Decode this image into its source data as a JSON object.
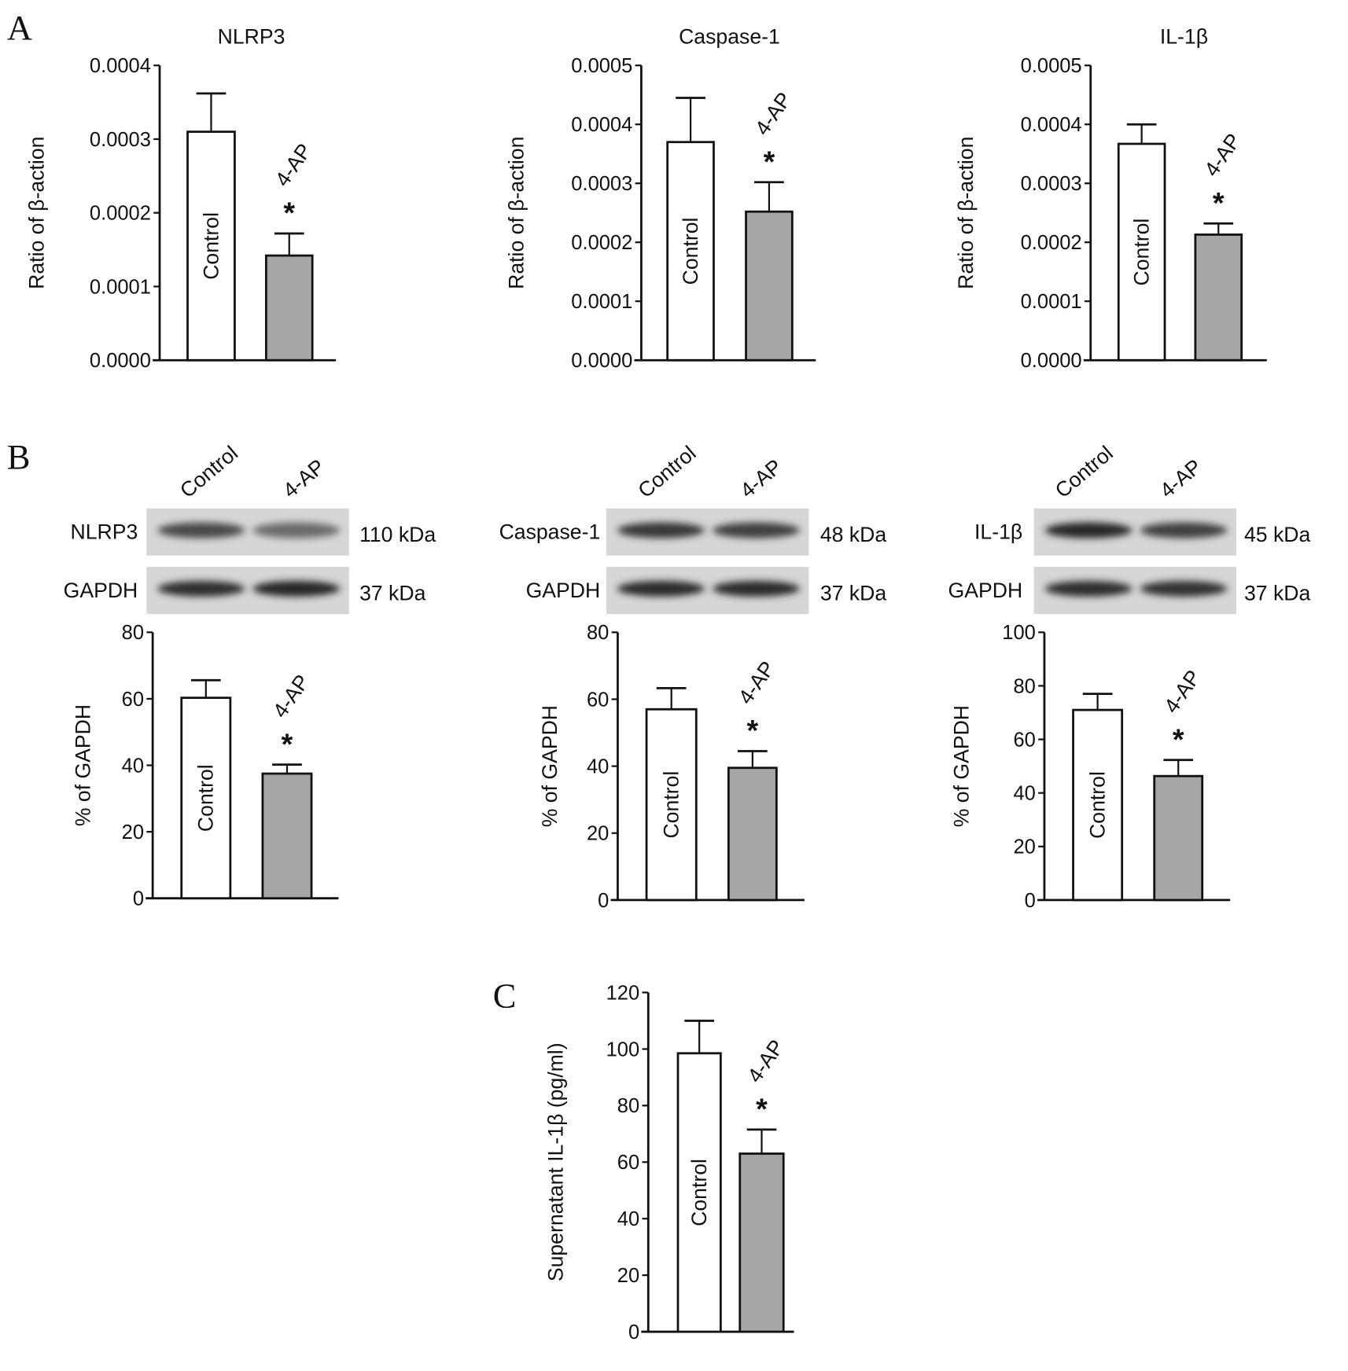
{
  "panels": {
    "A": "A",
    "B": "B",
    "C": "C"
  },
  "blots": [
    {
      "protein": "NLRP3",
      "protein_kda": "110 kDa",
      "loading": "GAPDH",
      "loading_kda": "37 kDa",
      "lanes": [
        "Control",
        "4-AP"
      ],
      "band_intensity": [
        0.75,
        0.55
      ],
      "loading_intensity": [
        0.9,
        0.95
      ]
    },
    {
      "protein": "Caspase-1",
      "protein_kda": "48 kDa",
      "loading": "GAPDH",
      "loading_kda": "37 kDa",
      "lanes": [
        "Control",
        "4-AP"
      ],
      "band_intensity": [
        0.85,
        0.8
      ],
      "loading_intensity": [
        0.92,
        0.92
      ]
    },
    {
      "protein": "IL-1β",
      "protein_kda": "45 kDa",
      "loading": "GAPDH",
      "loading_kda": "37 kDa",
      "lanes": [
        "Control",
        "4-AP"
      ],
      "band_intensity": [
        0.95,
        0.8
      ],
      "loading_intensity": [
        0.9,
        0.88
      ]
    }
  ],
  "chart_data": [
    {
      "type": "bar",
      "panel": "A",
      "title": "NLRP3",
      "ylabel": "Ratio of β-action",
      "ylim": [
        0,
        0.0004
      ],
      "ticks": [
        "0.0000",
        "0.0001",
        "0.0002",
        "0.0003",
        "0.0004"
      ],
      "tick_values": [
        0,
        0.0001,
        0.0002,
        0.0003,
        0.0004
      ],
      "categories": [
        "Control",
        "4-AP"
      ],
      "values": [
        0.00031,
        0.000142
      ],
      "errors": [
        5.2e-05,
        3e-05
      ],
      "significance": [
        "",
        "*"
      ]
    },
    {
      "type": "bar",
      "panel": "A",
      "title": "Caspase-1",
      "ylabel": "Ratio of β-action",
      "ylim": [
        0,
        0.0005
      ],
      "ticks": [
        "0.0000",
        "0.0001",
        "0.0002",
        "0.0003",
        "0.0004",
        "0.0005"
      ],
      "tick_values": [
        0,
        0.0001,
        0.0002,
        0.0003,
        0.0004,
        0.0005
      ],
      "categories": [
        "Control",
        "4-AP"
      ],
      "values": [
        0.00037,
        0.000252
      ],
      "errors": [
        7.5e-05,
        5e-05
      ],
      "significance": [
        "",
        "*"
      ]
    },
    {
      "type": "bar",
      "panel": "A",
      "title": "IL-1β",
      "ylabel": "Ratio of β-action",
      "ylim": [
        0,
        0.0005
      ],
      "ticks": [
        "0.0000",
        "0.0001",
        "0.0002",
        "0.0003",
        "0.0004",
        "0.0005"
      ],
      "tick_values": [
        0,
        0.0001,
        0.0002,
        0.0003,
        0.0004,
        0.0005
      ],
      "categories": [
        "Control",
        "4-AP"
      ],
      "values": [
        0.000367,
        0.000213
      ],
      "errors": [
        3.3e-05,
        1.9e-05
      ],
      "significance": [
        "",
        "*"
      ]
    },
    {
      "type": "bar",
      "panel": "B",
      "title": "",
      "ylabel": "% of GAPDH",
      "ylim": [
        0,
        80
      ],
      "ticks": [
        "0",
        "20",
        "40",
        "60",
        "80"
      ],
      "tick_values": [
        0,
        20,
        40,
        60,
        80
      ],
      "categories": [
        "Control",
        "4-AP"
      ],
      "values": [
        60.3,
        37.5
      ],
      "errors": [
        5.3,
        2.7
      ],
      "significance": [
        "",
        "*"
      ]
    },
    {
      "type": "bar",
      "panel": "B",
      "title": "",
      "ylabel": "% of GAPDH",
      "ylim": [
        0,
        80
      ],
      "ticks": [
        "0",
        "20",
        "40",
        "60",
        "80"
      ],
      "tick_values": [
        0,
        20,
        40,
        60,
        80
      ],
      "categories": [
        "Control",
        "4-AP"
      ],
      "values": [
        57,
        39.5
      ],
      "errors": [
        6.3,
        5
      ],
      "significance": [
        "",
        "*"
      ]
    },
    {
      "type": "bar",
      "panel": "B",
      "title": "",
      "ylabel": "% of GAPDH",
      "ylim": [
        0,
        100
      ],
      "ticks": [
        "0",
        "20",
        "40",
        "60",
        "80",
        "100"
      ],
      "tick_values": [
        0,
        20,
        40,
        60,
        80,
        100
      ],
      "categories": [
        "Control",
        "4-AP"
      ],
      "values": [
        71,
        46.3
      ],
      "errors": [
        6,
        6
      ],
      "significance": [
        "",
        "*"
      ]
    },
    {
      "type": "bar",
      "panel": "C",
      "title": "",
      "ylabel": "Supernatant IL-1β (pg/ml)",
      "ylim": [
        0,
        120
      ],
      "ticks": [
        "0",
        "20",
        "40",
        "60",
        "80",
        "100",
        "120"
      ],
      "tick_values": [
        0,
        20,
        40,
        60,
        80,
        100,
        120
      ],
      "categories": [
        "Control",
        "4-AP"
      ],
      "values": [
        98.5,
        63
      ],
      "errors": [
        11.5,
        8.5
      ],
      "significance": [
        "",
        "*"
      ]
    }
  ]
}
